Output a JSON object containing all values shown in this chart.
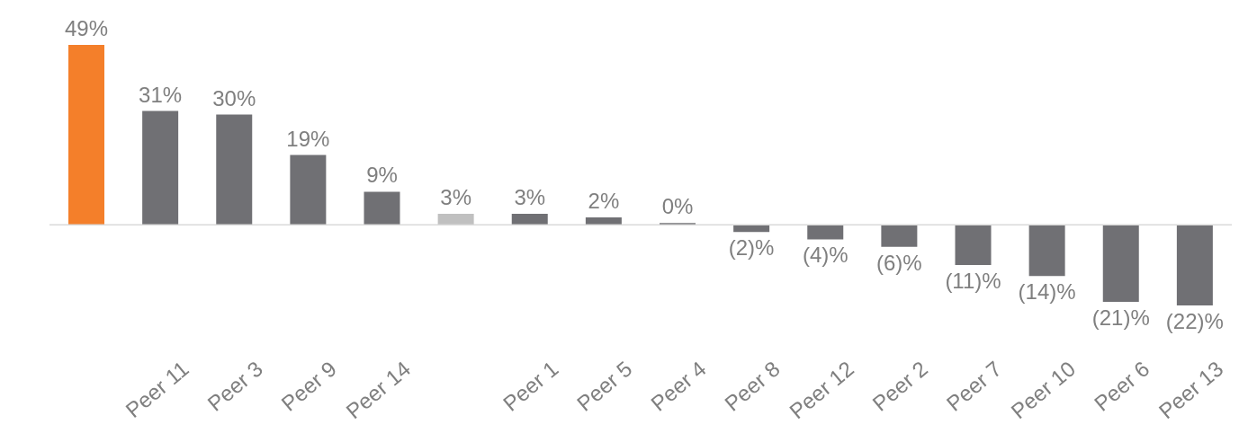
{
  "chart_data": {
    "type": "bar",
    "categories": [
      null,
      "Peer 11",
      "Peer 3",
      "Peer 9",
      "Peer 14",
      null,
      "Peer 1",
      "Peer 5",
      "Peer 4",
      "Peer 8",
      "Peer 12",
      "Peer 2",
      "Peer 7",
      "Peer 10",
      "Peer 6",
      "Peer 13"
    ],
    "values": [
      49,
      31,
      30,
      19,
      9,
      3,
      3,
      2,
      0,
      -2,
      -4,
      -6,
      -11,
      -14,
      -21,
      -22
    ],
    "colors": [
      "#f47f2a",
      "#707074",
      "#707074",
      "#707074",
      "#707074",
      "#c0c0c0",
      "#707074",
      "#707074",
      "#707074",
      "#707074",
      "#707074",
      "#707074",
      "#707074",
      "#707074",
      "#707074",
      "#707074"
    ],
    "value_labels": [
      "49%",
      "31%",
      "30%",
      "19%",
      "9%",
      "3%",
      "3%",
      "2%",
      "0%",
      "(2)%",
      "(4)%",
      "(6)%",
      "(11)%",
      "(14)%",
      "(21)%",
      "(22)%"
    ],
    "grid": false,
    "legend": false
  }
}
